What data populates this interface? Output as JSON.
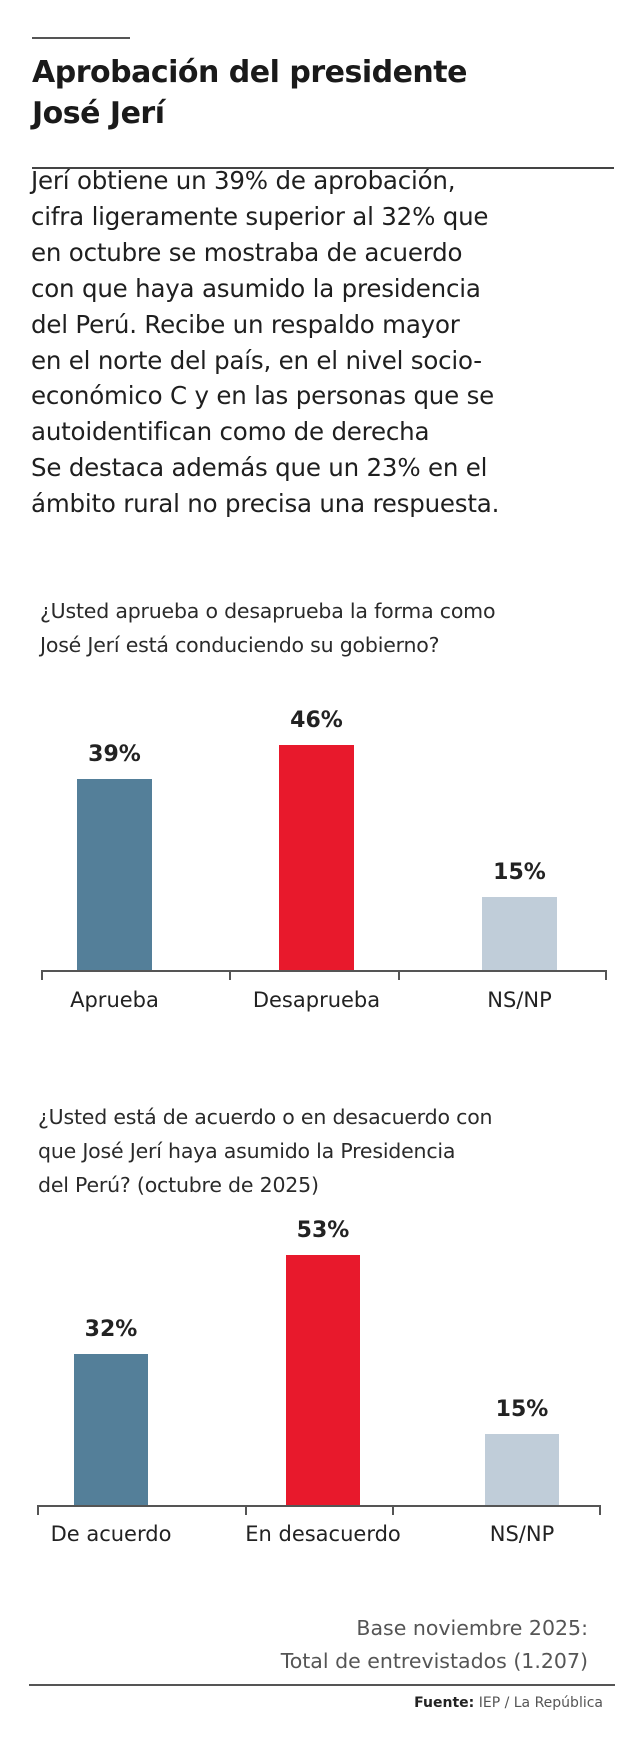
{
  "header": {
    "title_line1": "Aprobación del presidente",
    "title_line2": "José Jerí"
  },
  "body_lines": [
    "Jerí obtiene un 39% de aprobación,",
    "cifra ligeramente superior al 32% que",
    "en octubre se mostraba de acuerdo",
    "con que haya asumido la presidencia",
    "del Perú. Recibe un respaldo mayor",
    "en el norte del país, en el nivel socio-",
    "económico C y en las personas que se",
    "autoidentifican como de derecha",
    "Se destaca además que un 23% en el",
    "ámbito rural no precisa una respuesta."
  ],
  "chart_data": [
    {
      "type": "bar",
      "title": "¿Usted aprueba o desaprueba la forma como José Jerí está conduciendo su gobierno?",
      "title_lines": [
        "¿Usted aprueba o desaprueba la forma como",
        "José Jerí está conduciendo su gobierno?"
      ],
      "categories": [
        "Aprueba",
        "Desaprueba",
        "NS/NP"
      ],
      "values": [
        39,
        46,
        15
      ],
      "value_labels": [
        "39%",
        "46%",
        "15%"
      ],
      "colors": [
        "#547f99",
        "#e8192c",
        "#c0cdd9"
      ],
      "grid": false
    },
    {
      "type": "bar",
      "title": "¿Usted está de acuerdo o en desacuerdo con que José Jerí haya asumido la Presidencia del Perú? (octubre de 2025)",
      "title_lines": [
        "¿Usted está de acuerdo o en desacuerdo con",
        "que José Jerí haya asumido la Presidencia",
        "del Perú? (octubre de 2025)"
      ],
      "categories": [
        "De acuerdo",
        "En desacuerdo",
        "NS/NP"
      ],
      "values": [
        32,
        53,
        15
      ],
      "value_labels": [
        "32%",
        "53%",
        "15%"
      ],
      "colors": [
        "#547f99",
        "#e8192c",
        "#c0cdd9"
      ],
      "grid": false
    }
  ],
  "footer": {
    "base_line1": "Base noviembre 2025:",
    "base_line2": "Total de entrevistados (1.207)",
    "source_label": "Fuente:",
    "source_text": "IEP / La República"
  }
}
